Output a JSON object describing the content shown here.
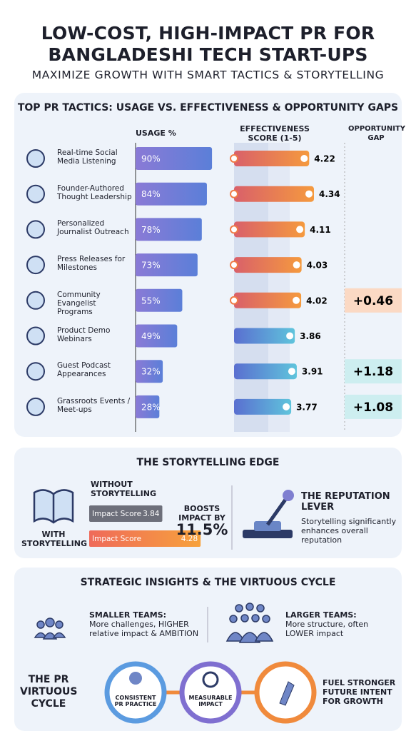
{
  "header": {
    "title_lines": [
      "LOW-COST, HIGH-IMPACT PR FOR",
      "BANGLADESHI TECH START-UPS"
    ],
    "subtitle": "MAXIMIZE GROWTH WITH SMART TACTICS & STORYTELLING"
  },
  "chart_data": {
    "type": "bar",
    "title": "TOP PR TACTICS: USAGE VS. EFFECTIVENESS & OPPORTUNITY GAPS",
    "categories": [
      "Real-time Social Media Listening",
      "Founder-Authored Thought Leadership",
      "Personalized Journalist Outreach",
      "Press Releases for Milestones",
      "Community Evangelist Programs",
      "Product Demo Webinars",
      "Guest Podcast Appearances",
      "Grassroots Events / Meet-ups"
    ],
    "series": [
      {
        "name": "USAGE %",
        "color": "#6f7fd8",
        "values": [
          90,
          84,
          78,
          73,
          55,
          49,
          32,
          28
        ],
        "value_labels": [
          "90%",
          "84%",
          "78%",
          "73%",
          "55%",
          "49%",
          "32%",
          "28%"
        ]
      },
      {
        "name": "EFFECTIVENESS SCORE (1-5)",
        "values": [
          4.22,
          4.34,
          4.11,
          4.03,
          4.02,
          3.86,
          3.91,
          3.77
        ],
        "colors": [
          "#f07a45",
          "#f07a45",
          "#f07a45",
          "#f07a45",
          "#f07a45",
          "#5f9fdc",
          "#5f9fdc",
          "#5f9fdc"
        ]
      },
      {
        "name": "OPPORTUNITY GAP",
        "values": [
          null,
          null,
          null,
          null,
          0.46,
          null,
          1.18,
          1.08
        ],
        "value_labels": [
          null,
          null,
          null,
          null,
          "+0.46",
          null,
          "+1.18",
          "+1.08"
        ],
        "colors": [
          null,
          null,
          null,
          null,
          "#fbd9c4",
          null,
          "#cdeef0",
          "#cdeef0"
        ]
      }
    ]
  },
  "storytelling": {
    "title": "THE STORYTELLING EDGE",
    "without_label": "WITHOUT STORYTELLING",
    "with_label": "WITH STORYTELLING",
    "scores": [
      {
        "label": "Impact Score",
        "value": 3.84
      },
      {
        "label": "Impact Score",
        "value": 4.28
      }
    ],
    "boost_label": "BOOSTS IMPACT BY",
    "boost_value": "11.5%",
    "lever_title": "THE REPUTATION LEVER",
    "lever_text": "Storytelling significantly enhances overall reputation"
  },
  "insights": {
    "title": "STRATEGIC INSIGHTS & THE VIRTUOUS CYCLE",
    "smaller": {
      "title": "SMALLER TEAMS:",
      "text": "More challenges, HIGHER relative impact & AMBITION"
    },
    "larger": {
      "title": "LARGER TEAMS:",
      "text": "More structure, often LOWER impact"
    },
    "cycle_title": "THE PR VIRTUOUS CYCLE",
    "cycle_nodes": [
      "CONSISTENT PR PRACTICE",
      "MEASURABLE IMPACT",
      "FUEL STRONGER FUTURE INTENT FOR GROWTH"
    ]
  }
}
